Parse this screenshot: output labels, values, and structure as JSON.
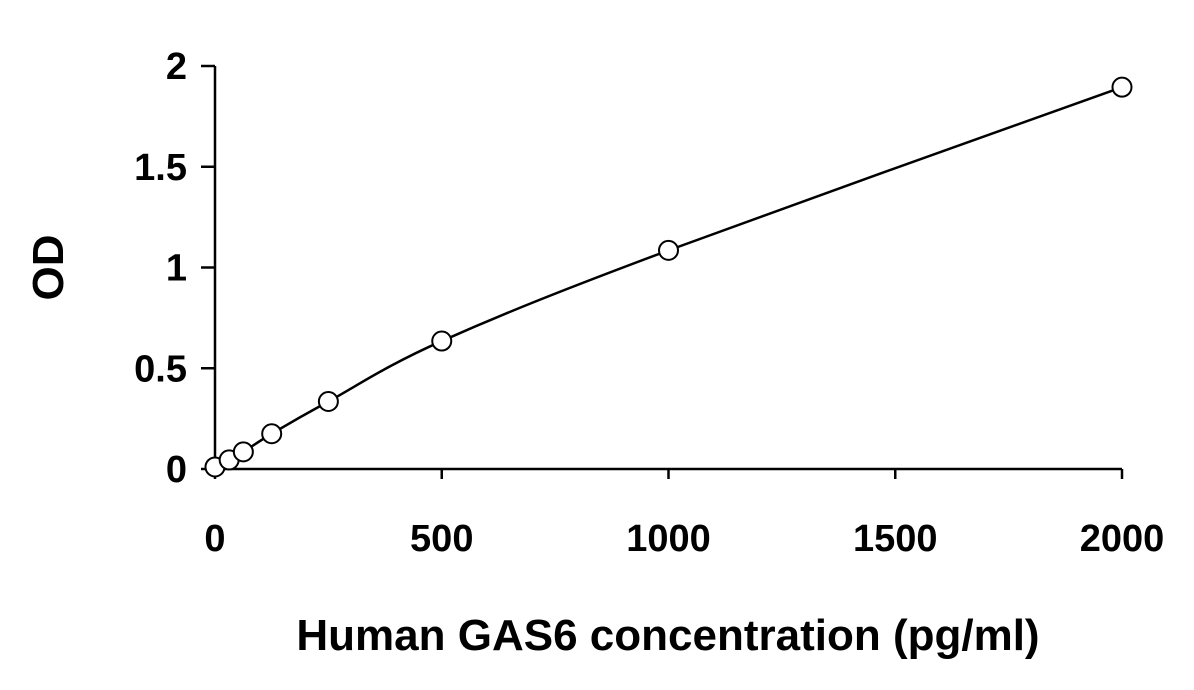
{
  "chart_data": {
    "type": "scatter",
    "title": "",
    "xlabel": "Human GAS6 concentration (pg/ml)",
    "ylabel": "OD",
    "xlim": [
      0,
      2000
    ],
    "ylim": [
      0,
      2
    ],
    "x_ticks": [
      0,
      500,
      1000,
      1500,
      2000
    ],
    "y_ticks": [
      0,
      0.5,
      1,
      1.5,
      2
    ],
    "x_tick_labels": [
      "0",
      "500",
      "1000",
      "1500",
      "2000"
    ],
    "y_tick_labels": [
      "0",
      "0.5",
      "1",
      "1.5",
      "2"
    ],
    "grid": false,
    "legend": "none",
    "marker": "open-circle",
    "fit_line": true,
    "series": [
      {
        "x": [
          0,
          31.25,
          62.5,
          125,
          250,
          500,
          1000,
          2000
        ],
        "y": [
          0.01,
          0.045,
          0.085,
          0.175,
          0.335,
          0.635,
          1.085,
          1.895
        ]
      }
    ]
  }
}
